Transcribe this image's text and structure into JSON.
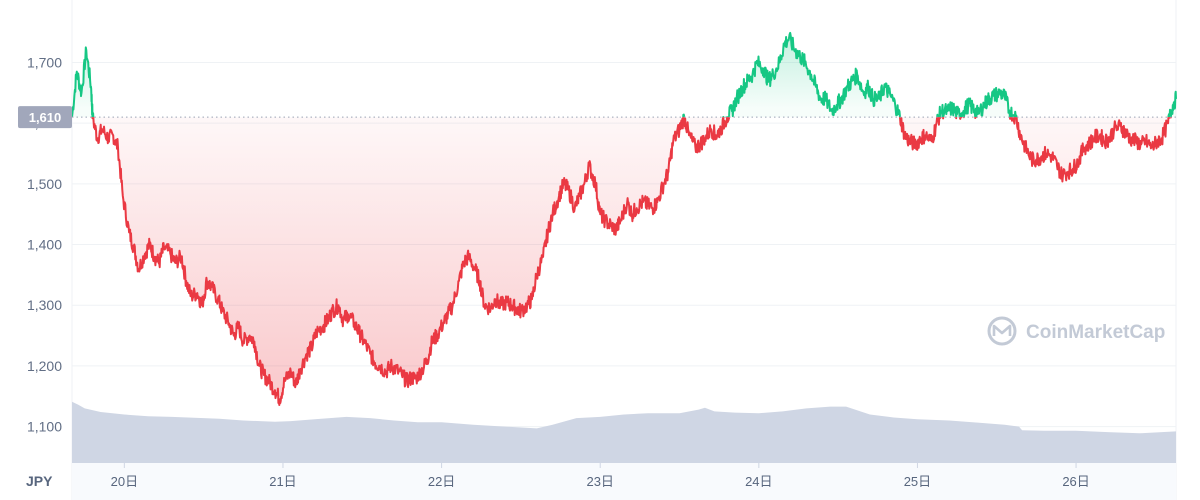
{
  "currency_label": "JPY",
  "watermark": "CoinMarketCap",
  "colors": {
    "up": "#16c784",
    "down": "#ea3943",
    "volume": "#cfd6e4",
    "grid": "#eff2f5",
    "axis_text": "#616e85",
    "ref_label_bg": "#a1a7bb"
  },
  "chart_data": {
    "type": "line",
    "title": "",
    "xlabel": "",
    "ylabel": "",
    "ylim": [
      1040,
      1770
    ],
    "y_ticks": [
      1100,
      1200,
      1300,
      1400,
      1500,
      1600,
      1700
    ],
    "y_tick_labels": [
      "1,100",
      "1,200",
      "1,300",
      "1,400",
      "1,500",
      "1,600",
      "1,700"
    ],
    "xlim": [
      19.67,
      26.63
    ],
    "x_ticks": [
      20,
      21,
      22,
      23,
      24,
      25,
      26
    ],
    "x_tick_labels": [
      "20日",
      "21日",
      "22日",
      "23日",
      "24日",
      "25日",
      "26日"
    ],
    "reference_price": 1610,
    "reference_price_label": "1,610",
    "grid": true,
    "price": {
      "x": [
        19.67,
        19.7,
        19.73,
        19.76,
        19.79,
        19.8,
        19.83,
        19.86,
        19.9,
        19.93,
        19.96,
        19.99,
        20.03,
        20.06,
        20.09,
        20.13,
        20.16,
        20.19,
        20.22,
        20.25,
        20.29,
        20.32,
        20.36,
        20.39,
        20.42,
        20.46,
        20.49,
        20.52,
        20.55,
        20.59,
        20.62,
        20.66,
        20.69,
        20.72,
        20.75,
        20.79,
        20.82,
        20.85,
        20.88,
        20.91,
        20.95,
        20.98,
        21.01,
        21.05,
        21.08,
        21.11,
        21.15,
        21.18,
        21.21,
        21.25,
        21.28,
        21.31,
        21.35,
        21.38,
        21.41,
        21.45,
        21.48,
        21.51,
        21.55,
        21.58,
        21.61,
        21.65,
        21.68,
        21.71,
        21.75,
        21.78,
        21.81,
        21.84,
        21.88,
        21.91,
        21.94,
        21.97,
        22.01,
        22.04,
        22.07,
        22.11,
        22.14,
        22.17,
        22.21,
        22.24,
        22.27,
        22.31,
        22.34,
        22.37,
        22.41,
        22.44,
        22.47,
        22.5,
        22.54,
        22.57,
        22.6,
        22.64,
        22.67,
        22.7,
        22.74,
        22.77,
        22.8,
        22.84,
        22.87,
        22.9,
        22.93,
        22.97,
        23.0,
        23.03,
        23.07,
        23.1,
        23.13,
        23.17,
        23.2,
        23.23,
        23.27,
        23.3,
        23.33,
        23.36,
        23.4,
        23.43,
        23.46,
        23.5,
        23.53,
        23.56,
        23.6,
        23.63,
        23.66,
        23.7,
        23.73,
        23.76,
        23.8,
        23.83,
        23.86,
        23.9,
        23.93,
        23.96,
        23.99,
        24.03,
        24.06,
        24.09,
        24.13,
        24.16,
        24.19,
        24.23,
        24.26,
        24.29,
        24.33,
        24.36,
        24.39,
        24.42,
        24.46,
        24.49,
        24.52,
        24.56,
        24.59,
        24.62,
        24.66,
        24.69,
        24.72,
        24.76,
        24.79,
        24.82,
        24.86,
        24.89,
        24.92,
        24.95,
        24.99,
        25.02,
        25.05,
        25.09,
        25.12,
        25.15,
        25.19,
        25.22,
        25.25,
        25.29,
        25.32,
        25.35,
        25.38,
        25.42,
        25.45,
        25.48,
        25.52,
        25.55,
        25.58,
        25.62,
        25.65,
        25.68,
        25.72,
        25.75,
        25.78,
        25.81,
        25.85,
        25.88,
        25.91,
        25.95,
        25.98,
        26.01,
        26.05,
        26.08,
        26.11,
        26.15,
        26.18,
        26.21,
        26.24,
        26.28,
        26.31,
        26.34,
        26.38,
        26.41,
        26.44,
        26.48,
        26.51,
        26.54,
        26.58,
        26.61,
        26.63
      ],
      "y": [
        1610,
        1685,
        1650,
        1720,
        1660,
        1610,
        1575,
        1590,
        1575,
        1580,
        1560,
        1480,
        1420,
        1395,
        1360,
        1385,
        1400,
        1380,
        1370,
        1395,
        1385,
        1370,
        1380,
        1340,
        1315,
        1320,
        1300,
        1340,
        1330,
        1310,
        1290,
        1270,
        1250,
        1265,
        1240,
        1250,
        1240,
        1200,
        1185,
        1175,
        1160,
        1145,
        1175,
        1190,
        1170,
        1195,
        1220,
        1230,
        1255,
        1265,
        1275,
        1290,
        1300,
        1275,
        1285,
        1270,
        1255,
        1240,
        1220,
        1205,
        1200,
        1190,
        1200,
        1195,
        1185,
        1175,
        1180,
        1180,
        1195,
        1210,
        1240,
        1250,
        1270,
        1285,
        1300,
        1340,
        1370,
        1380,
        1360,
        1340,
        1300,
        1295,
        1310,
        1300,
        1305,
        1300,
        1295,
        1290,
        1300,
        1310,
        1350,
        1380,
        1420,
        1450,
        1480,
        1500,
        1490,
        1460,
        1480,
        1500,
        1530,
        1500,
        1450,
        1440,
        1430,
        1425,
        1440,
        1470,
        1450,
        1460,
        1470,
        1465,
        1460,
        1470,
        1500,
        1520,
        1570,
        1590,
        1610,
        1580,
        1560,
        1565,
        1575,
        1590,
        1580,
        1590,
        1610,
        1620,
        1640,
        1660,
        1670,
        1680,
        1700,
        1690,
        1670,
        1680,
        1700,
        1730,
        1740,
        1720,
        1710,
        1700,
        1680,
        1660,
        1640,
        1640,
        1620,
        1630,
        1640,
        1660,
        1670,
        1680,
        1650,
        1660,
        1640,
        1640,
        1660,
        1650,
        1630,
        1610,
        1580,
        1570,
        1565,
        1575,
        1580,
        1570,
        1600,
        1620,
        1620,
        1625,
        1615,
        1620,
        1630,
        1625,
        1615,
        1630,
        1640,
        1645,
        1650,
        1645,
        1620,
        1610,
        1580,
        1560,
        1540,
        1540,
        1545,
        1550,
        1545,
        1530,
        1515,
        1520,
        1525,
        1535,
        1560,
        1565,
        1575,
        1580,
        1570,
        1575,
        1590,
        1595,
        1585,
        1575,
        1570,
        1565,
        1570,
        1560,
        1570,
        1575,
        1600,
        1630,
        1640
      ]
    },
    "volume_band": {
      "x": [
        19.67,
        19.71,
        19.75,
        19.85,
        20.0,
        20.15,
        20.3,
        20.5,
        20.6,
        20.75,
        20.95,
        21.05,
        21.2,
        21.4,
        21.55,
        21.7,
        21.85,
        22.0,
        22.2,
        22.4,
        22.6,
        22.7,
        22.85,
        23.0,
        23.15,
        23.3,
        23.5,
        23.62,
        23.66,
        23.72,
        23.85,
        24.0,
        24.15,
        24.3,
        24.45,
        24.55,
        24.7,
        24.85,
        25.0,
        25.2,
        25.4,
        25.55,
        25.64,
        25.66,
        25.8,
        26.0,
        26.2,
        26.4,
        26.63
      ],
      "y": [
        1141,
        1136,
        1130,
        1124,
        1120,
        1117,
        1116,
        1114,
        1113,
        1110,
        1108,
        1109,
        1112,
        1116,
        1114,
        1110,
        1107,
        1107,
        1103,
        1100,
        1097,
        1103,
        1114,
        1116,
        1120,
        1122,
        1122,
        1128,
        1131,
        1125,
        1123,
        1122,
        1125,
        1130,
        1133,
        1133,
        1120,
        1115,
        1112,
        1110,
        1106,
        1103,
        1100,
        1094,
        1093,
        1093,
        1091,
        1089,
        1092
      ]
    }
  }
}
